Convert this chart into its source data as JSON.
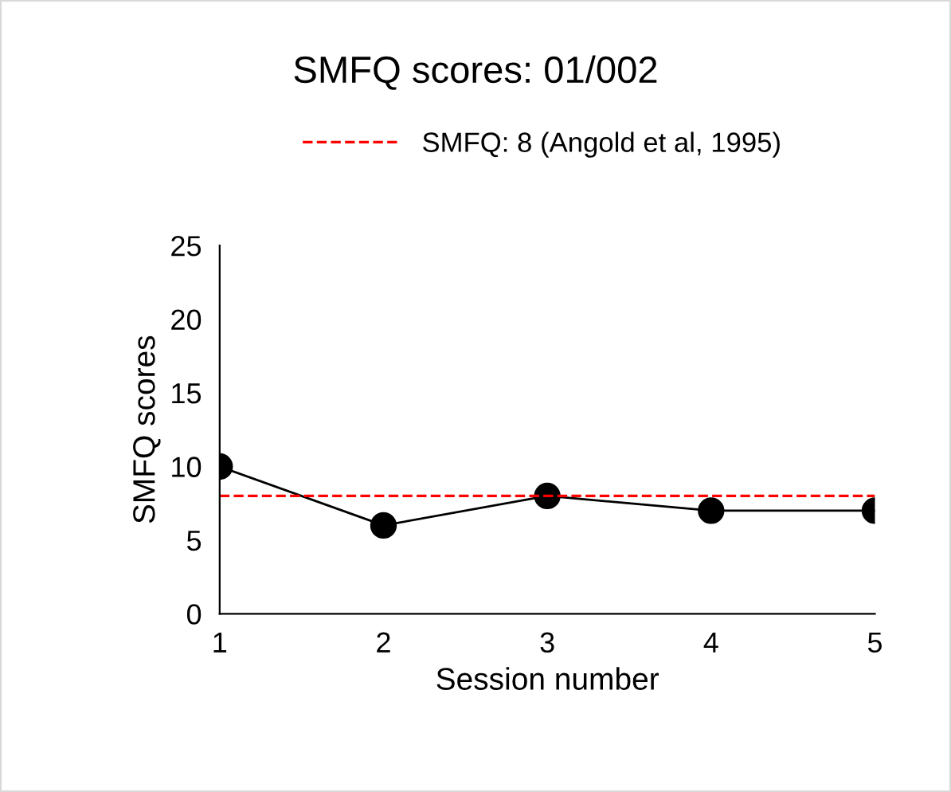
{
  "chart_data": {
    "type": "line",
    "title": "SMFQ scores: 01/002",
    "xlabel": "Session number",
    "ylabel": "SMFQ scores",
    "x": [
      1,
      2,
      3,
      4,
      5
    ],
    "series": [
      {
        "color": "#000000",
        "values": [
          10,
          6,
          8,
          7,
          7
        ]
      }
    ],
    "xlim": [
      1,
      5
    ],
    "xticks": [
      1,
      2,
      3,
      4,
      5
    ],
    "ylim": [
      0,
      25
    ],
    "yticks": [
      0,
      5,
      10,
      15,
      20,
      25
    ],
    "ref_lines": [
      {
        "axis": "y",
        "value": 8,
        "label": "SMFQ: 8 (Angold et al, 1995)",
        "color": "#ff0000",
        "line_style": "dashed"
      }
    ],
    "marker": "circle",
    "line_style": "solid",
    "grid": false,
    "legend": "top"
  }
}
